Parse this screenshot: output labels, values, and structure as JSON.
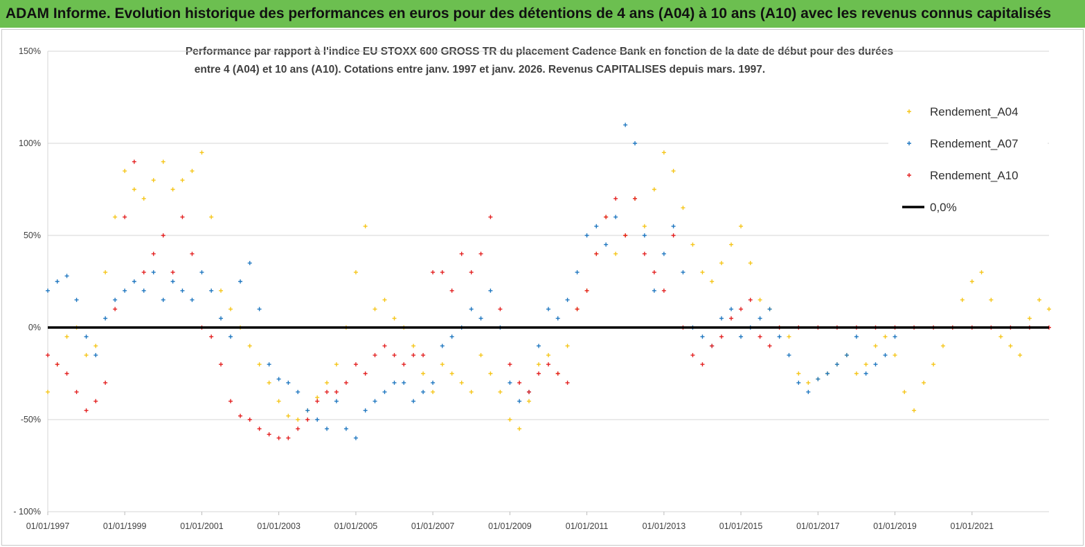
{
  "page": {
    "banner": "ADAM Informe. Evolution historique des performances en euros pour des détentions de 4 ans (A04) à 10 ans (A10) avec les revenus connus capitalisés"
  },
  "chart_data": {
    "type": "scatter",
    "title_line1": "Performance par rapport à l'indice EU STOXX 600 GROSS TR  du placement Cadence Bank en fonction de la date de début pour des durées",
    "title_line2": "entre 4 (A04) et 10 ans (A10). Cotations entre janv. 1997 et janv. 2026. Revenus CAPITALISES depuis mars. 1997.",
    "xlabel": "",
    "ylabel": "",
    "x_range": [
      "1997-01-01",
      "2023-01-01"
    ],
    "ylim": [
      -100,
      150
    ],
    "y_ticks": [
      150,
      100,
      50,
      0,
      -50,
      -100
    ],
    "y_tick_labels": [
      "150%",
      "100%",
      "50%",
      "0%",
      "-50%",
      "- 100%"
    ],
    "x_ticks": [
      "1997-01-01",
      "1999-01-01",
      "2001-01-01",
      "2003-01-01",
      "2005-01-01",
      "2007-01-01",
      "2009-01-01",
      "2011-01-01",
      "2013-01-01",
      "2015-01-01",
      "2017-01-01",
      "2019-01-01",
      "2021-01-01"
    ],
    "x_tick_labels": [
      "01/01/1997",
      "01/01/1999",
      "01/01/2001",
      "01/01/2003",
      "01/01/2005",
      "01/01/2007",
      "01/01/2009",
      "01/01/2011",
      "01/01/2013",
      "01/01/2015",
      "01/01/2017",
      "01/01/2019",
      "01/01/2021"
    ],
    "grid": "horizontal",
    "legend_position": "top-right",
    "marker": "+",
    "series": [
      {
        "name": "Rendement_A04",
        "color": "#f5c518",
        "x": [
          "1997-01-01",
          "1997-04-01",
          "1997-07-01",
          "1997-10-01",
          "1998-01-01",
          "1998-04-01",
          "1998-07-01",
          "1998-10-01",
          "1999-01-01",
          "1999-04-01",
          "1999-07-01",
          "1999-10-01",
          "2000-01-01",
          "2000-04-01",
          "2000-07-01",
          "2000-10-01",
          "2001-01-01",
          "2001-04-01",
          "2001-07-01",
          "2001-10-01",
          "2002-01-01",
          "2002-04-01",
          "2002-07-01",
          "2002-10-01",
          "2003-01-01",
          "2003-04-01",
          "2003-07-01",
          "2003-10-01",
          "2004-01-01",
          "2004-04-01",
          "2004-07-01",
          "2004-10-01",
          "2005-01-01",
          "2005-04-01",
          "2005-07-01",
          "2005-10-01",
          "2006-01-01",
          "2006-04-01",
          "2006-07-01",
          "2006-10-01",
          "2007-01-01",
          "2007-04-01",
          "2007-07-01",
          "2007-10-01",
          "2008-01-01",
          "2008-04-01",
          "2008-07-01",
          "2008-10-01",
          "2009-01-01",
          "2009-04-01",
          "2009-07-01",
          "2009-10-01",
          "2010-01-01",
          "2010-04-01",
          "2010-07-01",
          "2010-10-01",
          "2011-01-01",
          "2011-04-01",
          "2011-07-01",
          "2011-10-01",
          "2012-01-01",
          "2012-04-01",
          "2012-07-01",
          "2012-10-01",
          "2013-01-01",
          "2013-04-01",
          "2013-07-01",
          "2013-10-01",
          "2014-01-01",
          "2014-04-01",
          "2014-07-01",
          "2014-10-01",
          "2015-01-01",
          "2015-04-01",
          "2015-07-01",
          "2015-10-01",
          "2016-01-01",
          "2016-04-01",
          "2016-07-01",
          "2016-10-01",
          "2017-01-01",
          "2017-04-01",
          "2017-07-01",
          "2017-10-01",
          "2018-01-01",
          "2018-04-01",
          "2018-07-01",
          "2018-10-01",
          "2019-01-01",
          "2019-04-01",
          "2019-07-01",
          "2019-10-01",
          "2020-01-01",
          "2020-04-01",
          "2020-07-01",
          "2020-10-01",
          "2021-01-01",
          "2021-04-01",
          "2021-07-01",
          "2021-10-01",
          "2022-01-01",
          "2022-04-01",
          "2022-07-01",
          "2022-10-01",
          "2023-01-01"
        ],
        "y": [
          -35,
          -20,
          -5,
          0,
          -15,
          -10,
          30,
          60,
          85,
          75,
          70,
          80,
          90,
          75,
          80,
          85,
          95,
          60,
          20,
          10,
          0,
          -10,
          -20,
          -30,
          -40,
          -48,
          -50,
          -45,
          -38,
          -30,
          -20,
          0,
          30,
          55,
          10,
          15,
          5,
          0,
          -10,
          -25,
          -35,
          -20,
          -25,
          -30,
          -35,
          -15,
          -25,
          -35,
          -50,
          -55,
          -40,
          -20,
          -15,
          -25,
          -10,
          10,
          20,
          40,
          60,
          40,
          50,
          70,
          55,
          75,
          95,
          85,
          65,
          45,
          30,
          25,
          35,
          45,
          55,
          35,
          15,
          10,
          0,
          -5,
          -25,
          -30,
          -28,
          -25,
          -20,
          -15,
          -25,
          -20,
          -10,
          -5,
          -15,
          -35,
          -45,
          -30,
          -20,
          -10,
          0,
          15,
          25,
          30,
          15,
          -5,
          -10,
          -15,
          5,
          15,
          10
        ]
      },
      {
        "name": "Rendement_A07",
        "color": "#1f77c0",
        "x": [
          "1997-01-01",
          "1997-04-01",
          "1997-07-01",
          "1997-10-01",
          "1998-01-01",
          "1998-04-01",
          "1998-07-01",
          "1998-10-01",
          "1999-01-01",
          "1999-04-01",
          "1999-07-01",
          "1999-10-01",
          "2000-01-01",
          "2000-04-01",
          "2000-07-01",
          "2000-10-01",
          "2001-01-01",
          "2001-04-01",
          "2001-07-01",
          "2001-10-01",
          "2002-01-01",
          "2002-04-01",
          "2002-07-01",
          "2002-10-01",
          "2003-01-01",
          "2003-04-01",
          "2003-07-01",
          "2003-10-01",
          "2004-01-01",
          "2004-04-01",
          "2004-07-01",
          "2004-10-01",
          "2005-01-01",
          "2005-04-01",
          "2005-07-01",
          "2005-10-01",
          "2006-01-01",
          "2006-04-01",
          "2006-07-01",
          "2006-10-01",
          "2007-01-01",
          "2007-04-01",
          "2007-07-01",
          "2007-10-01",
          "2008-01-01",
          "2008-04-01",
          "2008-07-01",
          "2008-10-01",
          "2009-01-01",
          "2009-04-01",
          "2009-07-01",
          "2009-10-01",
          "2010-01-01",
          "2010-04-01",
          "2010-07-01",
          "2010-10-01",
          "2011-01-01",
          "2011-04-01",
          "2011-07-01",
          "2011-10-01",
          "2012-01-01",
          "2012-04-01",
          "2012-07-01",
          "2012-10-01",
          "2013-01-01",
          "2013-04-01",
          "2013-07-01",
          "2013-10-01",
          "2014-01-01",
          "2014-04-01",
          "2014-07-01",
          "2014-10-01",
          "2015-01-01",
          "2015-04-01",
          "2015-07-01",
          "2015-10-01",
          "2016-01-01",
          "2016-04-01",
          "2016-07-01",
          "2016-10-01",
          "2017-01-01",
          "2017-04-01",
          "2017-07-01",
          "2017-10-01",
          "2018-01-01",
          "2018-04-01",
          "2018-07-01",
          "2018-10-01",
          "2019-01-01"
        ],
        "y": [
          20,
          25,
          28,
          15,
          -5,
          -15,
          5,
          15,
          20,
          25,
          20,
          30,
          15,
          25,
          20,
          15,
          30,
          20,
          5,
          -5,
          25,
          35,
          10,
          -20,
          -28,
          -30,
          -35,
          -45,
          -50,
          -55,
          -40,
          -55,
          -60,
          -45,
          -40,
          -35,
          -30,
          -30,
          -40,
          -35,
          -30,
          -10,
          -5,
          0,
          10,
          5,
          20,
          0,
          -30,
          -40,
          -35,
          -10,
          10,
          5,
          15,
          30,
          50,
          55,
          45,
          60,
          110,
          100,
          50,
          20,
          40,
          55,
          30,
          0,
          -5,
          -10,
          5,
          10,
          -5,
          0,
          5,
          10,
          -5,
          -15,
          -30,
          -35,
          -28,
          -25,
          -20,
          -15,
          -5,
          -25,
          -20,
          -15,
          -5
        ]
      },
      {
        "name": "Rendement_A10",
        "color": "#e32020",
        "x": [
          "1997-01-01",
          "1997-04-01",
          "1997-07-01",
          "1997-10-01",
          "1998-01-01",
          "1998-04-01",
          "1998-07-01",
          "1998-10-01",
          "1999-01-01",
          "1999-04-01",
          "1999-07-01",
          "1999-10-01",
          "2000-01-01",
          "2000-04-01",
          "2000-07-01",
          "2000-10-01",
          "2001-01-01",
          "2001-04-01",
          "2001-07-01",
          "2001-10-01",
          "2002-01-01",
          "2002-04-01",
          "2002-07-01",
          "2002-10-01",
          "2003-01-01",
          "2003-04-01",
          "2003-07-01",
          "2003-10-01",
          "2004-01-01",
          "2004-04-01",
          "2004-07-01",
          "2004-10-01",
          "2005-01-01",
          "2005-04-01",
          "2005-07-01",
          "2005-10-01",
          "2006-01-01",
          "2006-04-01",
          "2006-07-01",
          "2006-10-01",
          "2007-01-01",
          "2007-04-01",
          "2007-07-01",
          "2007-10-01",
          "2008-01-01",
          "2008-04-01",
          "2008-07-01",
          "2008-10-01",
          "2009-01-01",
          "2009-04-01",
          "2009-07-01",
          "2009-10-01",
          "2010-01-01",
          "2010-04-01",
          "2010-07-01",
          "2010-10-01",
          "2011-01-01",
          "2011-04-01",
          "2011-07-01",
          "2011-10-01",
          "2012-01-01",
          "2012-04-01",
          "2012-07-01",
          "2012-10-01",
          "2013-01-01",
          "2013-04-01",
          "2013-07-01",
          "2013-10-01",
          "2014-01-01",
          "2014-04-01",
          "2014-07-01",
          "2014-10-01",
          "2015-01-01",
          "2015-04-01",
          "2015-07-01",
          "2015-10-01",
          "2016-01-01",
          "2016-07-01",
          "2017-01-01",
          "2017-07-01",
          "2018-01-01",
          "2018-07-01",
          "2019-01-01",
          "2019-07-01",
          "2020-01-01",
          "2020-07-01",
          "2021-01-01",
          "2021-07-01",
          "2022-01-01",
          "2022-07-01",
          "2023-01-01"
        ],
        "y": [
          -15,
          -20,
          -25,
          -35,
          -45,
          -40,
          -30,
          10,
          60,
          90,
          30,
          40,
          50,
          30,
          60,
          40,
          0,
          -5,
          -20,
          -40,
          -48,
          -50,
          -55,
          -58,
          -60,
          -60,
          -55,
          -50,
          -40,
          -35,
          -35,
          -30,
          -20,
          -25,
          -15,
          -10,
          -15,
          -20,
          -15,
          -15,
          30,
          30,
          20,
          40,
          30,
          40,
          60,
          10,
          -20,
          -30,
          -35,
          -25,
          -20,
          -25,
          -30,
          10,
          20,
          40,
          60,
          70,
          50,
          70,
          40,
          30,
          20,
          50,
          0,
          -15,
          -20,
          -10,
          -5,
          5,
          10,
          15,
          -5,
          -10,
          0,
          0,
          0,
          0,
          0,
          0,
          0,
          0,
          0,
          0,
          0,
          0,
          0,
          0,
          0
        ]
      }
    ],
    "zero_line": {
      "name": "0,0%",
      "value": 0,
      "color": "#000000"
    }
  }
}
